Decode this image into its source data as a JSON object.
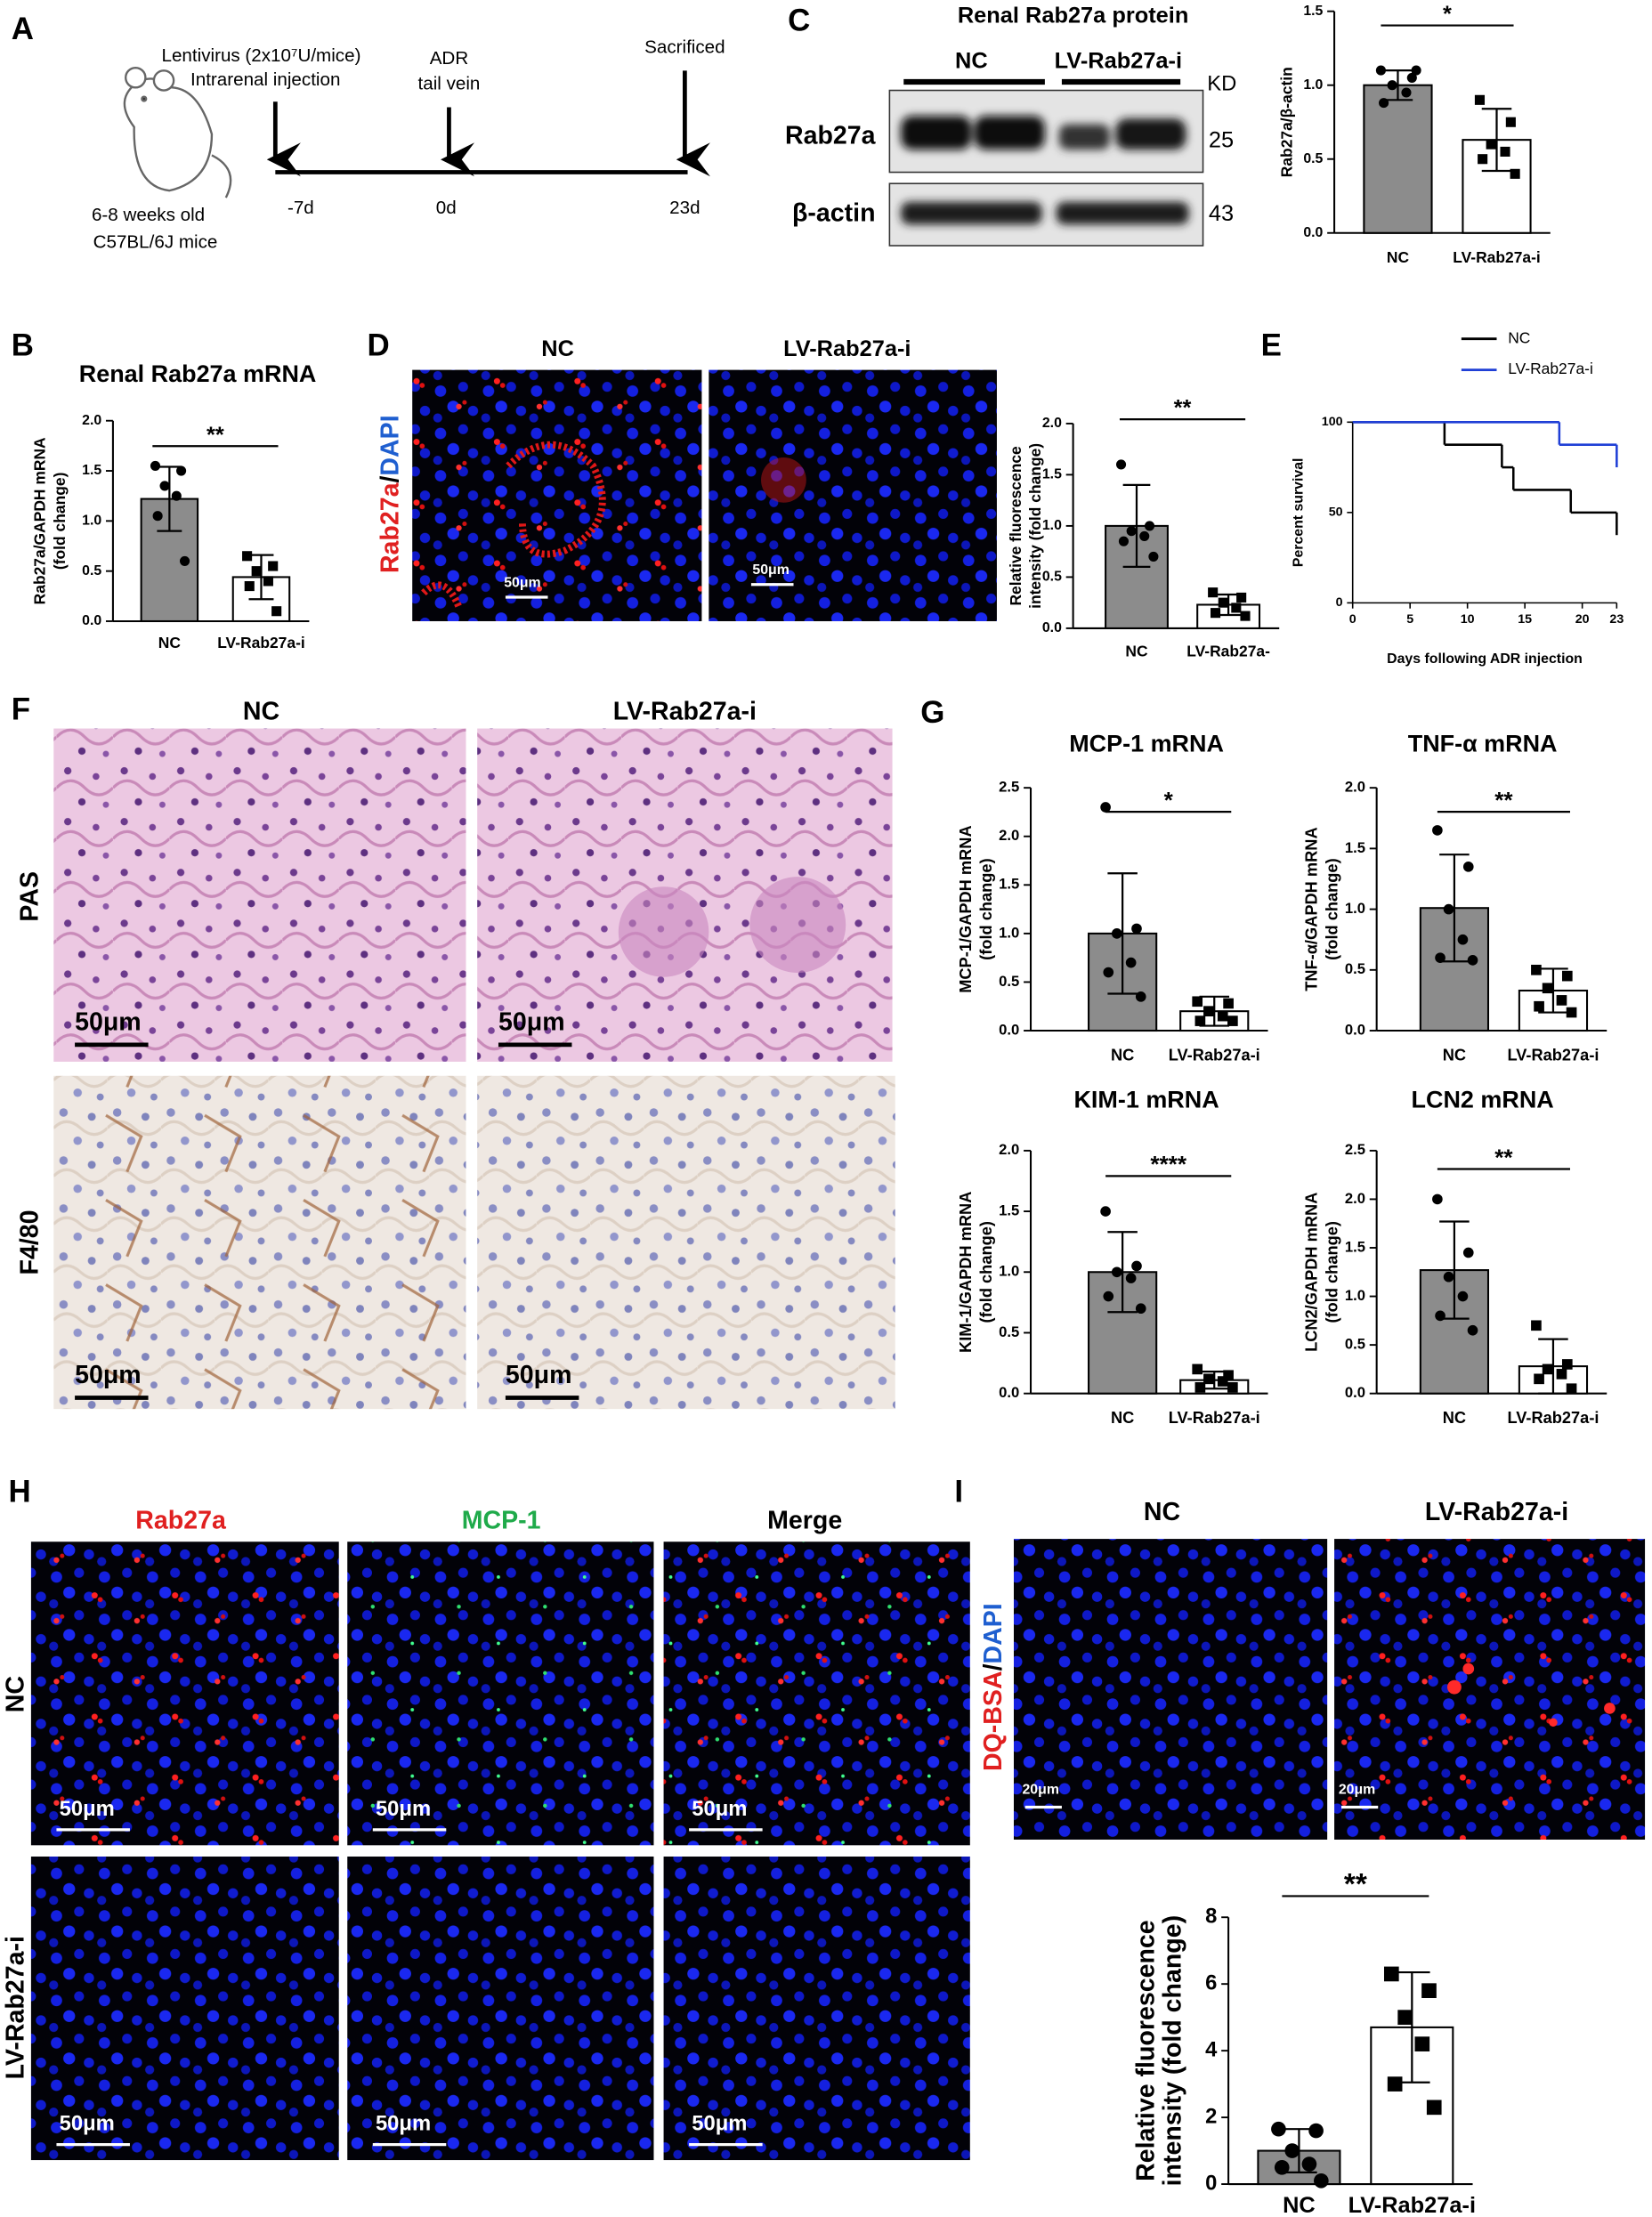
{
  "panels": {
    "letters": [
      "A",
      "B",
      "C",
      "D",
      "E",
      "F",
      "G",
      "H",
      "I"
    ],
    "a": {
      "injection": [
        "Lentivirus (2x10⁷U/mice)",
        "Intrarenal injection"
      ],
      "adr": [
        "ADR",
        "tail vein"
      ],
      "end": "Sacrificed",
      "days": [
        "-7d",
        "0d",
        "23d"
      ],
      "mice": [
        "6-8 weeks old",
        "C57BL/6J  mice"
      ]
    },
    "c": {
      "title": "Renal Rab27a protein",
      "groups": [
        "NC",
        "LV-Rab27a-i"
      ],
      "kd": "KD",
      "rows": [
        "Rab27a",
        "β-actin"
      ],
      "sizes": [
        "25",
        "43"
      ]
    },
    "d": {
      "columns": [
        "NC",
        "LV-Rab27a-i"
      ],
      "stain": [
        "Rab27a",
        "/",
        "DAPI"
      ],
      "scales": [
        "50μm",
        "50μm"
      ]
    },
    "f": {
      "columns": [
        "NC",
        "LV-Rab27a-i"
      ],
      "rows": [
        "PAS",
        "F4/80"
      ],
      "scales": [
        "50μm",
        "50μm",
        "50μm",
        "50μm"
      ]
    },
    "h": {
      "columns": [
        "Rab27a",
        "MCP-1",
        "Merge"
      ],
      "rows": [
        "NC",
        "LV-Rab27a-i"
      ],
      "scales": [
        "50μm",
        "50μm",
        "50μm",
        "50μm",
        "50μm",
        "50μm"
      ]
    },
    "i": {
      "columns": [
        "NC",
        "LV-Rab27a-i"
      ],
      "stain": [
        "DQ-BSA",
        "/",
        "DAPI"
      ],
      "scales": [
        "20μm",
        "20μm"
      ]
    }
  },
  "chart_data": [
    {
      "type": "bar",
      "y_label": [
        "Rab27a/β-actin"
      ],
      "categories": [
        "NC",
        "LV-Rab27a-i"
      ],
      "values": [
        1.0,
        0.63
      ],
      "errors": [
        0.1,
        0.21
      ],
      "points": [
        [
          1.1,
          1.05,
          1.0,
          0.95,
          0.88,
          1.1
        ],
        [
          0.9,
          0.75,
          0.6,
          0.55,
          0.5,
          0.4
        ]
      ],
      "colors": [
        "#8c8c8c",
        "#ffffff"
      ],
      "ylim": [
        0,
        1.5
      ],
      "yticks": [
        {
          "value": 0,
          "label": "0.0"
        },
        0.5,
        {
          "value": 1,
          "label": "1.0"
        },
        1.5
      ],
      "significance": "*"
    },
    {
      "type": "bar",
      "title": "Renal Rab27a mRNA",
      "y_label": [
        "Rab27a/GAPDH mRNA",
        "(fold change)"
      ],
      "categories": [
        "NC",
        "LV-Rab27a-i"
      ],
      "values": [
        1.22,
        0.44
      ],
      "errors": [
        0.32,
        0.22
      ],
      "points": [
        [
          1.55,
          1.5,
          1.35,
          1.25,
          1.05,
          0.6
        ],
        [
          0.65,
          0.55,
          0.5,
          0.4,
          0.35,
          0.1
        ]
      ],
      "colors": [
        "#8c8c8c",
        "#ffffff"
      ],
      "ylim": [
        0,
        2
      ],
      "yticks": [
        {
          "value": 0,
          "label": "0.0"
        },
        0.5,
        {
          "value": 1,
          "label": "1.0"
        },
        1.5,
        {
          "value": 2,
          "label": "2.0"
        }
      ],
      "significance": "**"
    },
    {
      "type": "bar",
      "y_label": [
        "Relative fluorescence",
        "intensity (fold change)"
      ],
      "categories": [
        "NC",
        "LV-Rab27a-"
      ],
      "values": [
        1.0,
        0.23
      ],
      "errors": [
        0.4,
        0.1
      ],
      "points": [
        [
          1.6,
          1.0,
          0.95,
          0.9,
          0.85,
          0.7
        ],
        [
          0.35,
          0.3,
          0.25,
          0.2,
          0.15,
          0.12
        ]
      ],
      "colors": [
        "#8c8c8c",
        "#ffffff"
      ],
      "ylim": [
        0,
        2
      ],
      "yticks": [
        {
          "value": 0,
          "label": "0.0"
        },
        0.5,
        {
          "value": 1,
          "label": "1.0"
        },
        1.5,
        {
          "value": 2,
          "label": "2.0"
        }
      ],
      "significance": "**"
    },
    {
      "type": "line",
      "x_label": "Days following ADR injection",
      "y_label": "Percent survival",
      "series": [
        {
          "name": "NC",
          "color": "#000000",
          "x": [
            0,
            8,
            13,
            14,
            19,
            23
          ],
          "values": [
            100,
            87.5,
            75,
            62.5,
            50,
            37.5
          ]
        },
        {
          "name": "LV-Rab27a-i",
          "color": "#1f3fd6",
          "x": [
            0,
            18,
            23
          ],
          "values": [
            100,
            87.5,
            75
          ]
        }
      ],
      "xlim": [
        0,
        23
      ],
      "xticks": [
        0,
        5,
        10,
        15,
        20,
        23
      ],
      "ylim": [
        0,
        100
      ],
      "yticks": [
        0,
        50,
        100
      ],
      "legend": "top-right"
    },
    {
      "type": "bar",
      "title": "MCP-1 mRNA",
      "y_label": [
        "MCP-1/GAPDH mRNA",
        "(fold change)"
      ],
      "categories": [
        "NC",
        "LV-Rab27a-i"
      ],
      "values": [
        1.0,
        0.2
      ],
      "errors": [
        0.62,
        0.15
      ],
      "points": [
        [
          2.3,
          1.05,
          1.0,
          0.7,
          0.6,
          0.35
        ],
        [
          0.3,
          0.28,
          0.2,
          0.15,
          0.1,
          0.1
        ]
      ],
      "colors": [
        "#8c8c8c",
        "#ffffff"
      ],
      "ylim": [
        0,
        2.5
      ],
      "yticks": [
        {
          "value": 0,
          "label": "0.0"
        },
        0.5,
        {
          "value": 1,
          "label": "1.0"
        },
        1.5,
        {
          "value": 2,
          "label": "2.0"
        },
        2.5
      ],
      "significance": "*"
    },
    {
      "type": "bar",
      "title": "TNF-α mRNA",
      "y_label": [
        "TNF-α/GAPDH mRNA",
        "(fold change)"
      ],
      "categories": [
        "NC",
        "LV-Rab27a-i"
      ],
      "values": [
        1.01,
        0.33
      ],
      "errors": [
        0.44,
        0.18
      ],
      "points": [
        [
          1.65,
          1.35,
          1.0,
          0.75,
          0.6,
          0.58
        ],
        [
          0.5,
          0.45,
          0.35,
          0.25,
          0.2,
          0.15
        ]
      ],
      "colors": [
        "#8c8c8c",
        "#ffffff"
      ],
      "ylim": [
        0,
        2
      ],
      "yticks": [
        {
          "value": 0,
          "label": "0.0"
        },
        0.5,
        {
          "value": 1,
          "label": "1.0"
        },
        1.5,
        {
          "value": 2,
          "label": "2.0"
        }
      ],
      "significance": "**"
    },
    {
      "type": "bar",
      "title": "KIM-1 mRNA",
      "y_label": [
        "KIM-1/GAPDH mRNA",
        "(fold change)"
      ],
      "categories": [
        "NC",
        "LV-Rab27a-i"
      ],
      "values": [
        1.0,
        0.11
      ],
      "errors": [
        0.33,
        0.07
      ],
      "points": [
        [
          1.5,
          1.05,
          1.0,
          0.95,
          0.8,
          0.7
        ],
        [
          0.2,
          0.15,
          0.12,
          0.1,
          0.05,
          0.05
        ]
      ],
      "colors": [
        "#8c8c8c",
        "#ffffff"
      ],
      "ylim": [
        0,
        2
      ],
      "yticks": [
        {
          "value": 0,
          "label": "0.0"
        },
        0.5,
        {
          "value": 1,
          "label": "1.0"
        },
        1.5,
        {
          "value": 2,
          "label": "2.0"
        }
      ],
      "significance": "****"
    },
    {
      "type": "bar",
      "title": "LCN2 mRNA",
      "y_label": [
        "LCN2/GAPDH mRNA",
        "(fold change)"
      ],
      "categories": [
        "NC",
        "LV-Rab27a-i"
      ],
      "values": [
        1.27,
        0.28
      ],
      "errors": [
        0.5,
        0.28
      ],
      "points": [
        [
          2.0,
          1.45,
          1.2,
          1.0,
          0.8,
          0.65
        ],
        [
          0.7,
          0.3,
          0.25,
          0.2,
          0.15,
          0.05
        ]
      ],
      "colors": [
        "#8c8c8c",
        "#ffffff"
      ],
      "ylim": [
        0,
        2.5
      ],
      "yticks": [
        {
          "value": 0,
          "label": "0.0"
        },
        0.5,
        {
          "value": 1,
          "label": "1.0"
        },
        1.5,
        {
          "value": 2,
          "label": "2.0"
        },
        2.5
      ],
      "significance": "**"
    },
    {
      "type": "bar",
      "y_label": [
        "Relative fluorescence",
        "intensity (fold change)"
      ],
      "categories": [
        "NC",
        "LV-Rab27a-i"
      ],
      "values": [
        1.0,
        4.7
      ],
      "errors": [
        0.65,
        1.65
      ],
      "points": [
        [
          1.65,
          1.6,
          1.0,
          0.6,
          0.5,
          0.1
        ],
        [
          6.3,
          5.8,
          5.0,
          4.2,
          3.0,
          2.3
        ]
      ],
      "colors": [
        "#8c8c8c",
        "#ffffff"
      ],
      "ylim": [
        0,
        8
      ],
      "yticks": [
        0,
        2,
        4,
        6,
        8
      ],
      "significance": "**"
    }
  ]
}
